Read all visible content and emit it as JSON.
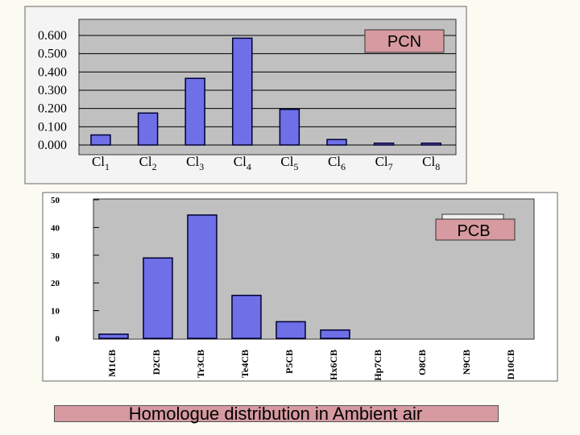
{
  "colors": {
    "bar_fill": "#6f6fe8",
    "bar_stroke": "#000033",
    "plot_bg": "#c0c0c0",
    "top_frame_bg": "#f4f4f4",
    "label_box_fill": "#d69aa0",
    "page_bg": "#fbfbf1"
  },
  "footer": {
    "title": "Homologue distribution in Ambient air"
  },
  "chart_data": [
    {
      "type": "bar",
      "label_box": "PCN",
      "categories": [
        {
          "base": "Cl",
          "sub": "1"
        },
        {
          "base": "Cl",
          "sub": "2"
        },
        {
          "base": "Cl",
          "sub": "3"
        },
        {
          "base": "Cl",
          "sub": "4"
        },
        {
          "base": "Cl",
          "sub": "5"
        },
        {
          "base": "Cl",
          "sub": "6"
        },
        {
          "base": "Cl",
          "sub": "7"
        },
        {
          "base": "Cl",
          "sub": "8"
        }
      ],
      "values": [
        0.055,
        0.175,
        0.365,
        0.585,
        0.195,
        0.03,
        0.01,
        0.01
      ],
      "yticks": [
        "0.600",
        "0.500",
        "0.400",
        "0.300",
        "0.200",
        "0.100",
        "0.000"
      ],
      "ylim": [
        0,
        0.6
      ],
      "grid": true
    },
    {
      "type": "bar",
      "label_box": "PCB",
      "categories": [
        "M1CB",
        "D2CB",
        "Tr3CB",
        "Te4CB",
        "P5CB",
        "Hx6CB",
        "Hp7CB",
        "O8CB",
        "N9CB",
        "D10CB"
      ],
      "values": [
        1.5,
        29,
        44.5,
        15.5,
        6,
        3,
        0,
        0,
        0,
        0
      ],
      "yticks": [
        "50",
        "40",
        "30",
        "20",
        "10",
        "0"
      ],
      "ylim": [
        0,
        50
      ],
      "grid": false
    }
  ]
}
